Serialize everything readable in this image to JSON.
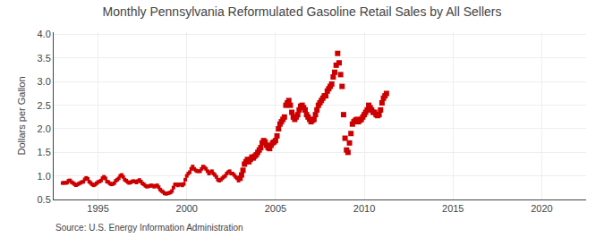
{
  "chart_data": {
    "type": "line",
    "title": "Monthly Pennsylvania Reformulated Gasoline Retail Sales by All Sellers",
    "ylabel": "Dollars per Gallon",
    "annotations": [
      "Source: U.S. Energy Information Administration"
    ],
    "xlim": [
      1992.5,
      2022.5
    ],
    "ylim": [
      0.5,
      4.05
    ],
    "xticks": [
      1995,
      2000,
      2005,
      2010,
      2015,
      2020
    ],
    "yticks": [
      0.5,
      {
        "value": 1.0,
        "label": "1.0"
      },
      1.5,
      {
        "value": 2.0,
        "label": "2.0"
      },
      2.5,
      {
        "value": 3.0,
        "label": "3.0"
      },
      3.5,
      {
        "value": 4.0,
        "label": "4.0"
      }
    ],
    "grid": true,
    "series": [
      {
        "type": "line",
        "color": "#cc0000",
        "marker": "square",
        "line_style": "solid",
        "x": [
          1993.0,
          1993.083,
          1993.167,
          1993.25,
          1993.333,
          1993.417,
          1993.5,
          1993.583,
          1993.667,
          1993.75,
          1993.833,
          1993.917,
          1994.0,
          1994.083,
          1994.167,
          1994.25,
          1994.333,
          1994.417,
          1994.5,
          1994.583,
          1994.667,
          1994.75,
          1994.833,
          1994.917,
          1995.0,
          1995.083,
          1995.167,
          1995.25,
          1995.333,
          1995.417,
          1995.5,
          1995.583,
          1995.667,
          1995.75,
          1995.833,
          1995.917,
          1996.0,
          1996.083,
          1996.167,
          1996.25,
          1996.333,
          1996.417,
          1996.5,
          1996.583,
          1996.667,
          1996.75,
          1996.833,
          1996.917,
          1997.0,
          1997.083,
          1997.167,
          1997.25,
          1997.333,
          1997.417,
          1997.5,
          1997.583,
          1997.667,
          1997.75,
          1997.833,
          1997.917,
          1998.0,
          1998.083,
          1998.167,
          1998.25,
          1998.333,
          1998.417,
          1998.5,
          1998.583,
          1998.667,
          1998.75,
          1998.833,
          1998.917,
          1999.0,
          1999.083,
          1999.167,
          1999.25,
          1999.333,
          1999.417,
          1999.5,
          1999.583,
          1999.667,
          1999.75,
          1999.833,
          1999.917,
          2000.0,
          2000.083,
          2000.167,
          2000.25,
          2000.333,
          2000.417,
          2000.5,
          2000.583,
          2000.667,
          2000.75,
          2000.833,
          2000.917,
          2001.0,
          2001.083,
          2001.167,
          2001.25,
          2001.333,
          2001.417,
          2001.5,
          2001.583,
          2001.667,
          2001.75,
          2001.833,
          2001.917,
          2002.0,
          2002.083,
          2002.167,
          2002.25,
          2002.333,
          2002.417,
          2002.5,
          2002.583,
          2002.667,
          2002.75,
          2002.833,
          2002.917
        ],
        "values": [
          0.849,
          0.855,
          0.852,
          0.856,
          0.897,
          0.906,
          0.87,
          0.852,
          0.828,
          0.803,
          0.817,
          0.835,
          0.851,
          0.869,
          0.876,
          0.927,
          0.958,
          0.939,
          0.878,
          0.851,
          0.822,
          0.801,
          0.817,
          0.845,
          0.869,
          0.882,
          0.901,
          0.951,
          0.982,
          0.949,
          0.881,
          0.87,
          0.841,
          0.82,
          0.829,
          0.848,
          0.897,
          0.921,
          0.948,
          1.002,
          1.02,
          0.98,
          0.921,
          0.9,
          0.871,
          0.851,
          0.862,
          0.882,
          0.891,
          0.882,
          0.861,
          0.892,
          0.913,
          0.88,
          0.84,
          0.82,
          0.79,
          0.772,
          0.78,
          0.789,
          0.8,
          0.79,
          0.77,
          0.79,
          0.8,
          0.76,
          0.71,
          0.68,
          0.66,
          0.63,
          0.62,
          0.63,
          0.64,
          0.65,
          0.68,
          0.752,
          0.82,
          0.82,
          0.8,
          0.82,
          0.82,
          0.8,
          0.83,
          0.92,
          1.0,
          1.05,
          1.08,
          1.15,
          1.2,
          1.15,
          1.12,
          1.1,
          1.1,
          1.1,
          1.15,
          1.2,
          1.18,
          1.15,
          1.1,
          1.05,
          1.08,
          1.1,
          1.05,
          1.02,
          0.98,
          0.92,
          0.9,
          0.92,
          0.95,
          0.98,
          1.0,
          1.05,
          1.08,
          1.1,
          1.05,
          1.05,
          1.02,
          0.98,
          0.95,
          0.9
        ]
      },
      {
        "type": "scatter",
        "color": "#cc0000",
        "marker": "square",
        "x": [
          2003.0,
          2003.083,
          2003.167,
          2003.25,
          2003.333,
          2003.417,
          2003.5,
          2003.583,
          2003.667,
          2003.75,
          2003.833,
          2003.917,
          2004.0,
          2004.083,
          2004.167,
          2004.25,
          2004.333,
          2004.417,
          2004.5,
          2004.583,
          2004.667,
          2004.75,
          2004.833,
          2004.917,
          2005.0,
          2005.083,
          2005.167,
          2005.25,
          2005.333,
          2005.417,
          2005.5,
          2005.583,
          2005.667,
          2005.75,
          2005.833,
          2005.917,
          2006.0,
          2006.083,
          2006.167,
          2006.25,
          2006.333,
          2006.417,
          2006.5,
          2006.583,
          2006.667,
          2006.75,
          2006.833,
          2006.917,
          2007.0,
          2007.083,
          2007.167,
          2007.25,
          2007.333,
          2007.417,
          2007.5,
          2007.583,
          2007.667,
          2007.75,
          2007.833,
          2007.917,
          2008.0,
          2008.083,
          2008.167,
          2008.25,
          2008.333,
          2008.417,
          2008.5,
          2008.583,
          2008.667,
          2008.75,
          2008.833,
          2008.917,
          2009.0,
          2009.083,
          2009.167,
          2009.25,
          2009.333,
          2009.417,
          2009.5,
          2009.583,
          2009.667,
          2009.75,
          2009.833,
          2009.917,
          2010.0,
          2010.083,
          2010.167,
          2010.25,
          2010.333,
          2010.417,
          2010.5,
          2010.583,
          2010.667,
          2010.75,
          2010.833,
          2010.917,
          2011.0,
          2011.083,
          2011.167,
          2011.25
        ],
        "values": [
          0.95,
          1.02,
          1.12,
          1.25,
          1.3,
          1.35,
          1.3,
          1.35,
          1.4,
          1.38,
          1.42,
          1.45,
          1.5,
          1.55,
          1.6,
          1.7,
          1.75,
          1.72,
          1.65,
          1.6,
          1.58,
          1.65,
          1.7,
          1.72,
          1.75,
          1.85,
          2.0,
          2.1,
          2.15,
          2.2,
          2.25,
          2.5,
          2.55,
          2.6,
          2.5,
          2.35,
          2.25,
          2.2,
          2.25,
          2.3,
          2.4,
          2.48,
          2.5,
          2.45,
          2.4,
          2.3,
          2.25,
          2.2,
          2.15,
          2.18,
          2.2,
          2.3,
          2.4,
          2.5,
          2.55,
          2.6,
          2.65,
          2.7,
          2.7,
          2.8,
          2.85,
          2.9,
          2.95,
          3.1,
          3.2,
          3.35,
          3.6,
          3.4,
          3.15,
          2.9,
          2.3,
          1.8,
          1.55,
          1.5,
          1.7,
          1.9,
          2.1,
          2.15,
          2.18,
          2.2,
          2.15,
          2.18,
          2.2,
          2.25,
          2.3,
          2.35,
          2.4,
          2.5,
          2.45,
          2.4,
          2.35,
          2.35,
          2.3,
          2.28,
          2.3,
          2.4,
          2.55,
          2.65,
          2.7,
          2.75
        ]
      }
    ]
  }
}
